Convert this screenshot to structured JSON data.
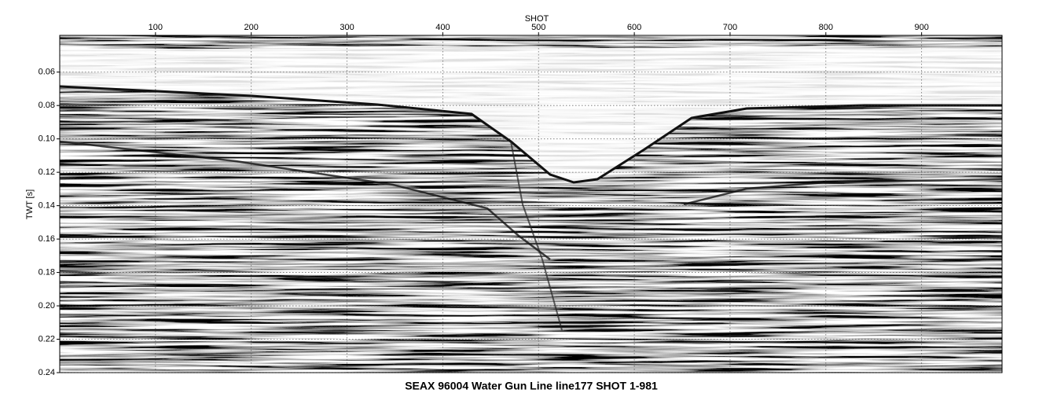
{
  "chart_data": {
    "type": "seismic",
    "title": "SEAX 96004 Water Gun Line line177 SHOT 1-981",
    "xlabel": "SHOT",
    "ylabel": "TWT [s]",
    "xlim": [
      0,
      984
    ],
    "xticks": [
      100,
      200,
      300,
      400,
      500,
      600,
      700,
      800,
      900
    ],
    "ylim": [
      0.038,
      0.24
    ],
    "y_inverted": true,
    "yticks": [
      0.06,
      0.08,
      {
        "value": 0.1,
        "label": "0.10"
      },
      0.12,
      0.14,
      0.16,
      0.18,
      {
        "value": 0.2,
        "label": "0.20"
      },
      0.22,
      0.24
    ],
    "grid": true
  }
}
